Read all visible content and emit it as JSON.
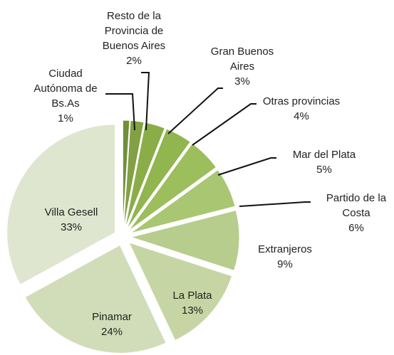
{
  "chart_data": {
    "type": "pie",
    "categories": [
      "Ciudad Autónoma de Bs.As",
      "Resto de la Provincia de Buenos Aires",
      "Gran Buenos Aires",
      "Otras provincias",
      "Mar del Plata",
      "Partido de la Costa",
      "Extranjeros",
      "La Plata",
      "Pinamar",
      "Villa Gesell"
    ],
    "values": [
      1,
      2,
      3,
      4,
      5,
      6,
      9,
      13,
      24,
      33
    ],
    "value_labels": [
      "1%",
      "2%",
      "3%",
      "4%",
      "5%",
      "6%",
      "9%",
      "13%",
      "24%",
      "33%"
    ],
    "colors": [
      "#738e3a",
      "#82a044",
      "#8aad48",
      "#91b54f",
      "#9cbe5c",
      "#a9c673",
      "#b7cd8d",
      "#c5d6a4",
      "#d1ddb9",
      "#dee6cf"
    ]
  }
}
